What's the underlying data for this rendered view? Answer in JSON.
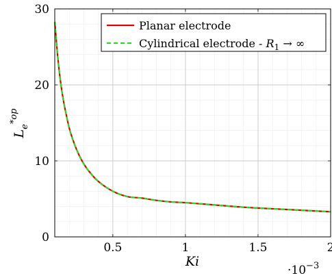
{
  "chart_data": {
    "type": "line",
    "title": "",
    "xlabel": "Ki",
    "ylabel": "L_e^{*op}",
    "x_multiplier_label": "10",
    "x_multiplier_exponent": "−3",
    "x_multiplier_dot": "·",
    "xlim": [
      0.1,
      2.0
    ],
    "ylim": [
      0,
      30
    ],
    "xticks": [
      0.5,
      1,
      1.5,
      2
    ],
    "xtick_labels": [
      "0.5",
      "1",
      "1.5",
      "2"
    ],
    "yticks": [
      0,
      10,
      20,
      30
    ],
    "ytick_labels": [
      "0",
      "10",
      "20",
      "30"
    ],
    "grid": true,
    "minor_grid": true,
    "legend_position": "top-right",
    "series": [
      {
        "name": "Planar electrode",
        "color": "#e00000",
        "style": "solid",
        "x": [
          0.1,
          0.12,
          0.14,
          0.16,
          0.18,
          0.2,
          0.25,
          0.3,
          0.35,
          0.4,
          0.5,
          0.6,
          0.7,
          0.8,
          0.9,
          1.0,
          1.2,
          1.4,
          1.6,
          1.8,
          2.0
        ],
        "y": [
          28.3,
          23.8,
          20.4,
          17.9,
          16.0,
          14.3,
          11.5,
          9.6,
          8.3,
          7.3,
          6.0,
          5.3,
          5.1,
          4.8,
          4.6,
          4.5,
          4.2,
          3.9,
          3.7,
          3.5,
          3.3
        ]
      },
      {
        "name": "Cylindrical electrode - R_1 → ∞",
        "name_prefix": "Cylindrical electrode - ",
        "name_symbol": "R",
        "name_subscript": "1",
        "name_suffix": " → ∞",
        "color": "#22dd22",
        "style": "dashed",
        "x": [
          0.1,
          0.12,
          0.14,
          0.16,
          0.18,
          0.2,
          0.25,
          0.3,
          0.35,
          0.4,
          0.5,
          0.6,
          0.7,
          0.8,
          0.9,
          1.0,
          1.2,
          1.4,
          1.6,
          1.8,
          2.0
        ],
        "y": [
          28.3,
          23.8,
          20.4,
          17.9,
          16.0,
          14.3,
          11.5,
          9.6,
          8.3,
          7.3,
          6.0,
          5.3,
          5.1,
          4.8,
          4.6,
          4.5,
          4.2,
          3.9,
          3.7,
          3.5,
          3.3
        ]
      }
    ]
  }
}
